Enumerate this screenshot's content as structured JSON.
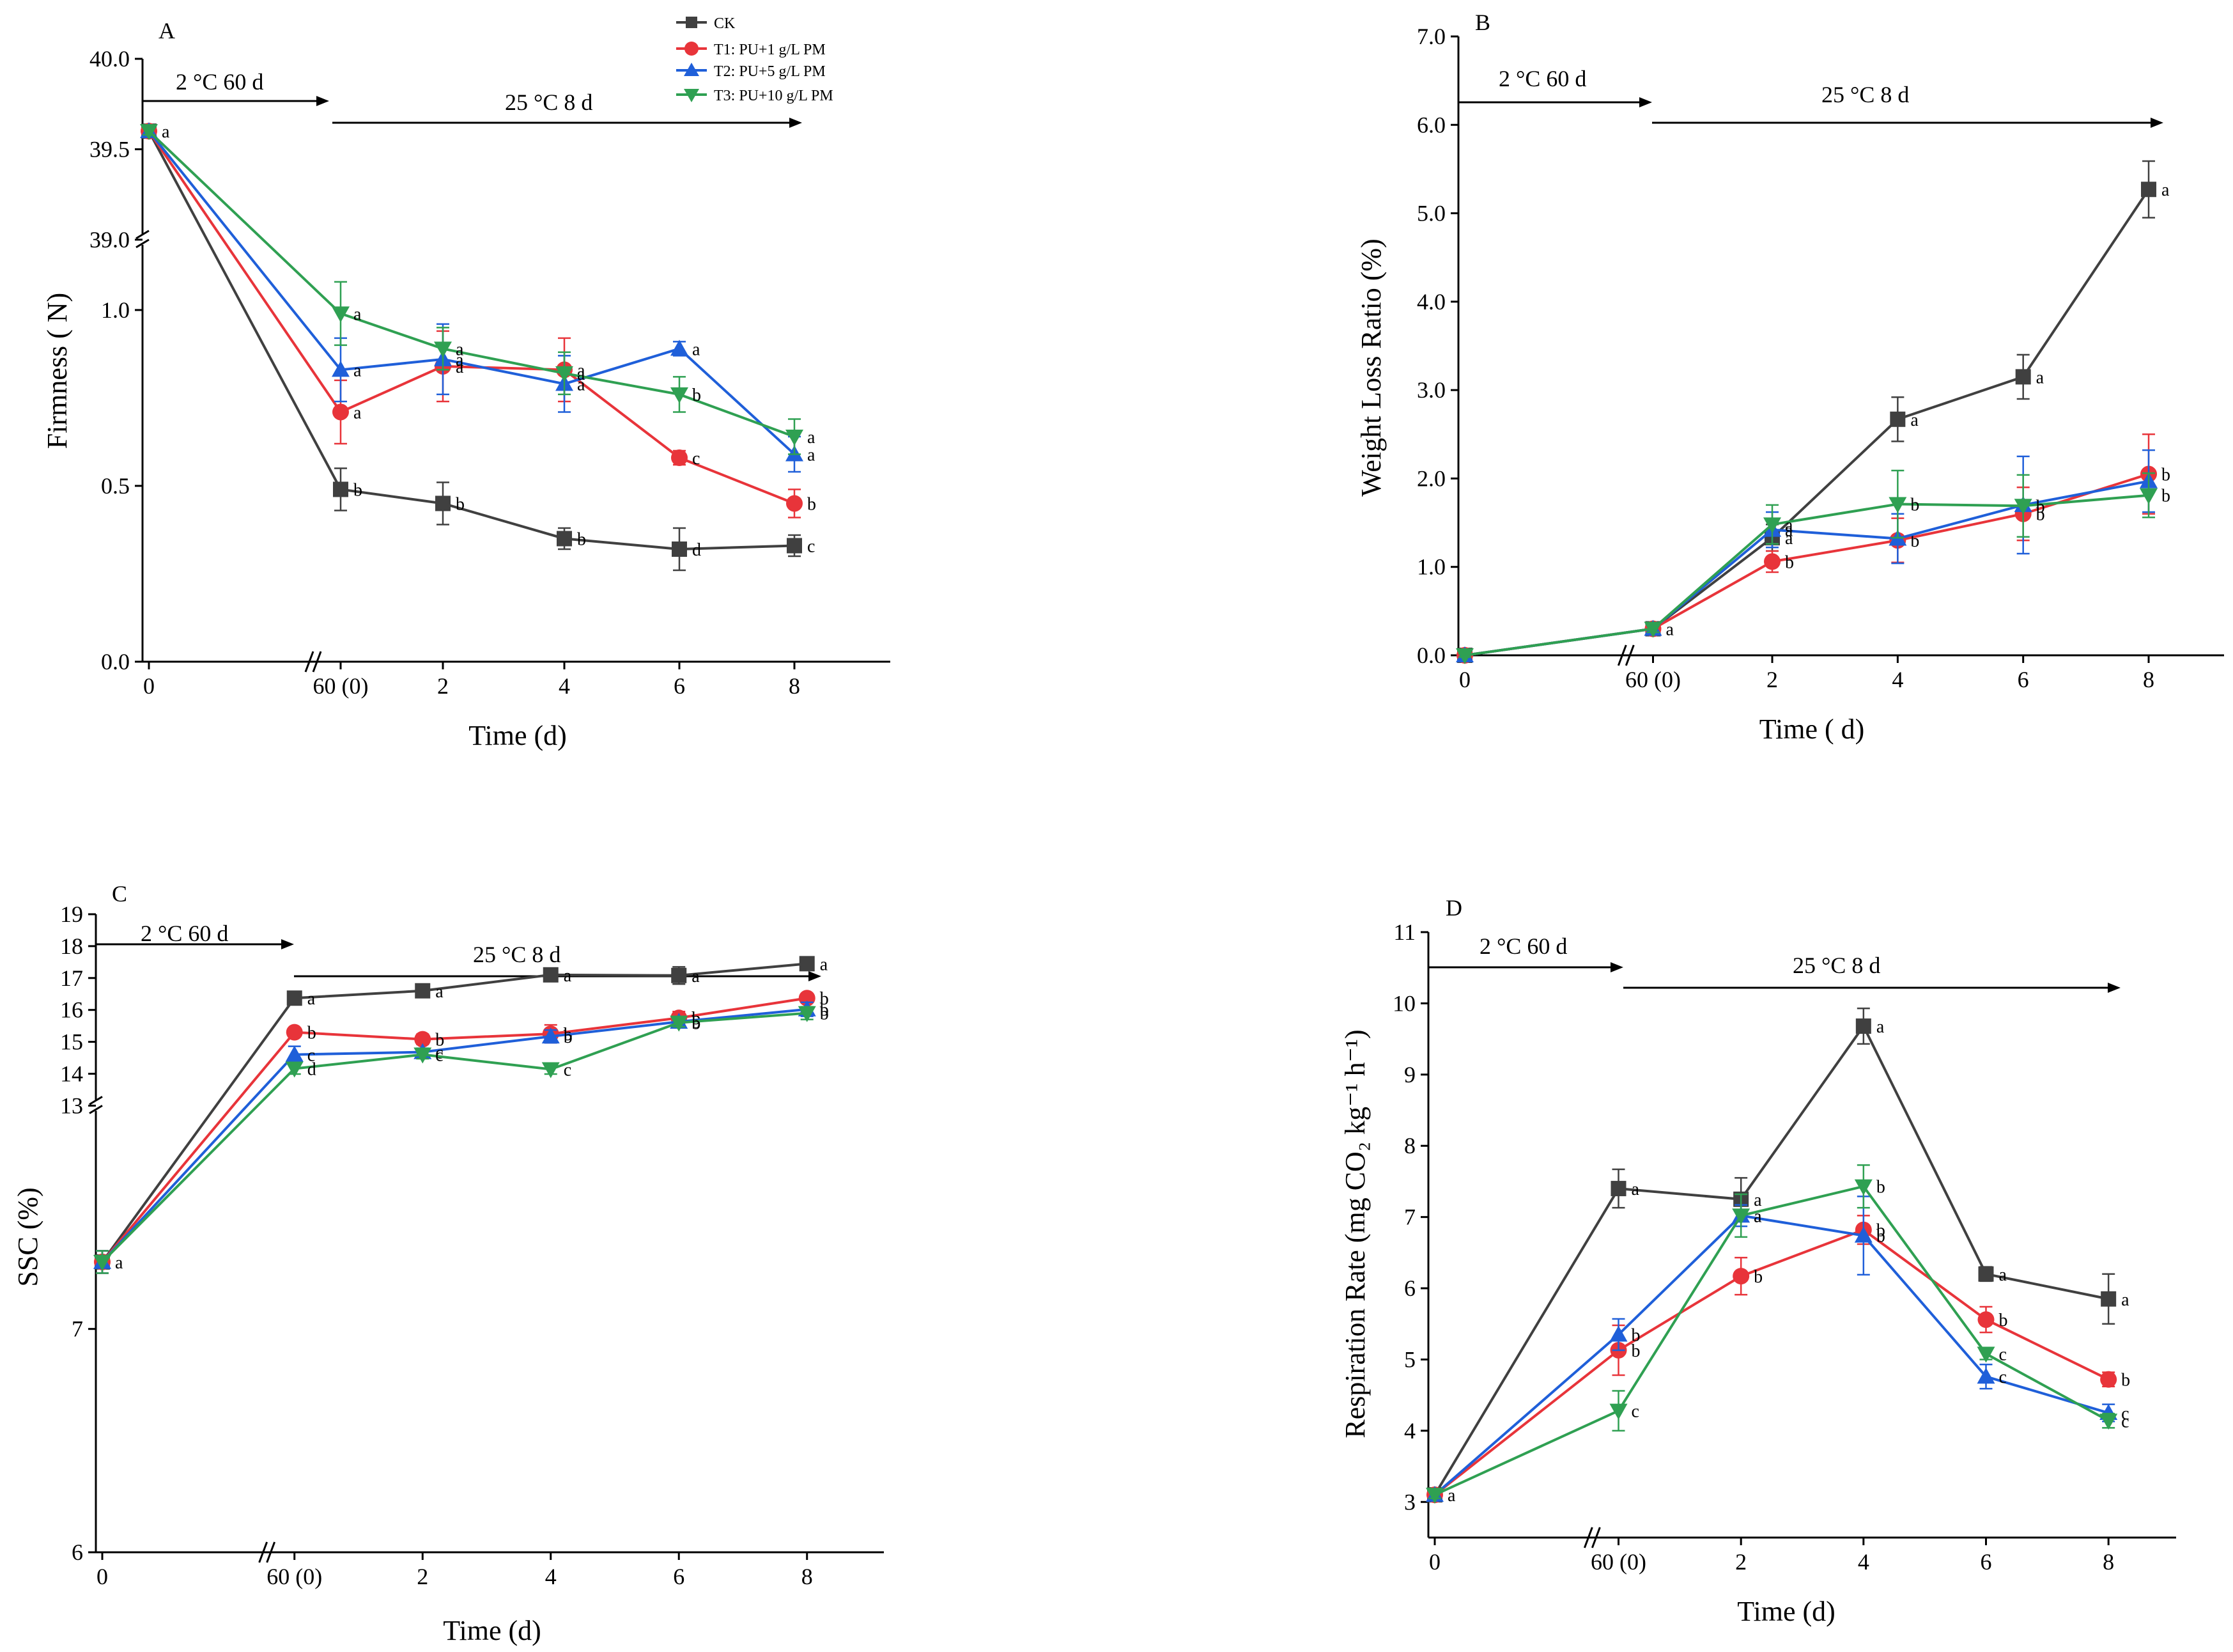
{
  "colors": {
    "CK": "#404040",
    "T1": "#e8343a",
    "T2": "#1f5fd9",
    "T3": "#2fa052"
  },
  "legend": [
    {
      "key": "CK",
      "label": "CK",
      "marker": "square"
    },
    {
      "key": "T1",
      "label": "T1: PU+1 g/L PM",
      "marker": "circle"
    },
    {
      "key": "T2",
      "label": "T2: PU+5 g/L PM",
      "marker": "triangle-up"
    },
    {
      "key": "T3",
      "label": "T3: PU+10 g/L PM",
      "marker": "triangle-down"
    }
  ],
  "chart_data": [
    {
      "id": "A",
      "panel": "A",
      "type": "line",
      "xlabel": "Time (d)",
      "ylabel": "Firmness ( N)",
      "categories": [
        "0",
        "60 (0)",
        "2",
        "4",
        "6",
        "8"
      ],
      "x_positions": [
        0,
        3,
        4.6,
        6.5,
        8.3,
        10.1
      ],
      "x_max": 11.5,
      "cold_label": "2 °C 60 d",
      "warm_label": "25 °C 8 d",
      "axis_break": {
        "lower": [
          0,
          1.2
        ],
        "upper": [
          39.0,
          40.0
        ],
        "split": 0.3
      },
      "ticks": [
        "0.0",
        "0.5",
        "1.0",
        "39.0",
        "39.5",
        "40.0"
      ],
      "tick_values": [
        0.0,
        0.5,
        1.0,
        39.0,
        39.5,
        40.0
      ],
      "series": [
        {
          "key": "CK",
          "name": "CK",
          "values": [
            39.6,
            0.49,
            0.45,
            0.35,
            0.32,
            0.33
          ],
          "errors": [
            0.02,
            0.06,
            0.06,
            0.03,
            0.06,
            0.03
          ],
          "labels": [
            "a",
            "b",
            "b",
            "b",
            "d",
            "c"
          ]
        },
        {
          "key": "T1",
          "name": "T1: PU+1 g/L PM",
          "values": [
            39.6,
            0.71,
            0.84,
            0.83,
            0.58,
            0.45
          ],
          "errors": [
            0.02,
            0.09,
            0.1,
            0.09,
            0.02,
            0.04
          ],
          "labels": [
            "",
            "a",
            "a",
            "a",
            "c",
            "b"
          ]
        },
        {
          "key": "T2",
          "name": "T2: PU+5 g/L PM",
          "values": [
            39.6,
            0.83,
            0.86,
            0.79,
            0.89,
            0.59
          ],
          "errors": [
            0.02,
            0.09,
            0.1,
            0.08,
            0.02,
            0.05
          ],
          "labels": [
            "",
            "a",
            "a",
            "a",
            "a",
            "a"
          ]
        },
        {
          "key": "T3",
          "name": "T3: PU+10 g/L PM",
          "values": [
            39.6,
            0.99,
            0.89,
            0.82,
            0.76,
            0.64
          ],
          "errors": [
            0.02,
            0.09,
            0.06,
            0.06,
            0.05,
            0.05
          ],
          "labels": [
            "",
            "a",
            "a",
            "a",
            "b",
            "a"
          ]
        }
      ]
    },
    {
      "id": "B",
      "panel": "B",
      "type": "line",
      "xlabel": "Time ( d)",
      "ylabel": "Weight Loss Ratio (%)",
      "categories": [
        "0",
        "60 (0)",
        "2",
        "4",
        "6",
        "8"
      ],
      "x_positions": [
        0,
        3,
        4.9,
        6.9,
        8.9,
        10.9
      ],
      "x_max": 12,
      "cold_label": "2 °C 60 d",
      "warm_label": "25 °C 8 d",
      "ylim": [
        0,
        7
      ],
      "ticks": [
        "0.0",
        "1.0",
        "2.0",
        "3.0",
        "4.0",
        "5.0",
        "6.0",
        "7.0"
      ],
      "tick_values": [
        0,
        1,
        2,
        3,
        4,
        5,
        6,
        7
      ],
      "series": [
        {
          "key": "CK",
          "name": "CK",
          "values": [
            0.0,
            0.3,
            1.33,
            2.67,
            3.15,
            5.27
          ],
          "errors": [
            0.02,
            0.05,
            0.15,
            0.25,
            0.25,
            0.32
          ],
          "labels": [
            "",
            "a",
            "a",
            "a",
            "a",
            "a"
          ]
        },
        {
          "key": "T1",
          "name": "T1: PU+1 g/L PM",
          "values": [
            0.0,
            0.3,
            1.06,
            1.3,
            1.6,
            2.05
          ],
          "errors": [
            0.02,
            0.04,
            0.12,
            0.25,
            0.3,
            0.45
          ],
          "labels": [
            "",
            "",
            "b",
            "b",
            "b",
            "b"
          ]
        },
        {
          "key": "T2",
          "name": "T2: PU+5 g/L PM",
          "values": [
            0.0,
            0.3,
            1.42,
            1.32,
            1.7,
            1.97
          ],
          "errors": [
            0.02,
            0.04,
            0.2,
            0.28,
            0.55,
            0.35
          ],
          "labels": [
            "",
            "",
            "a",
            "",
            "",
            ""
          ]
        },
        {
          "key": "T3",
          "name": "T3: PU+10 g/L PM",
          "values": [
            0.0,
            0.3,
            1.48,
            1.71,
            1.69,
            1.81
          ],
          "errors": [
            0.02,
            0.04,
            0.22,
            0.38,
            0.35,
            0.25
          ],
          "labels": [
            "",
            "",
            "a",
            "b",
            "b",
            "b"
          ]
        }
      ]
    },
    {
      "id": "C",
      "panel": "C",
      "type": "line",
      "xlabel": "Time (d)",
      "ylabel": "SSC (%)",
      "categories": [
        "0",
        "60 (0)",
        "2",
        "4",
        "6",
        "8"
      ],
      "x_positions": [
        0,
        3,
        5,
        7,
        9,
        11
      ],
      "x_max": 12.1,
      "cold_label": "2 °C 60 d",
      "warm_label": "25 °C 8 d",
      "axis_break": {
        "lower": [
          6,
          8
        ],
        "upper": [
          13,
          19
        ],
        "split": 0.3
      },
      "ticks": [
        "6",
        "7",
        "13",
        "14",
        "15",
        "16",
        "17",
        "18",
        "19"
      ],
      "tick_values": [
        6,
        7,
        13,
        14,
        15,
        16,
        17,
        18,
        19
      ],
      "series": [
        {
          "key": "CK",
          "name": "CK",
          "values": [
            7.3,
            16.37,
            16.6,
            17.1,
            17.08,
            17.45
          ],
          "errors": [
            0.05,
            0.13,
            0.12,
            0.14,
            0.27,
            0.16
          ],
          "labels": [
            "a",
            "a",
            "a",
            "a",
            "a",
            "a"
          ]
        },
        {
          "key": "T1",
          "name": "T1: PU+1 g/L PM",
          "values": [
            7.3,
            15.3,
            15.08,
            15.25,
            15.75,
            16.37
          ],
          "errors": [
            0.05,
            0.12,
            0.16,
            0.28,
            0.2,
            0.13
          ],
          "labels": [
            "",
            "b",
            "b",
            "b",
            "b",
            "b"
          ]
        },
        {
          "key": "T2",
          "name": "T2: PU+5 g/L PM",
          "values": [
            7.3,
            14.6,
            14.68,
            15.17,
            15.63,
            16.02
          ],
          "errors": [
            0.05,
            0.26,
            0.12,
            0.2,
            0.13,
            0.22
          ],
          "labels": [
            "",
            "c",
            "c",
            "b",
            "b",
            "b"
          ]
        },
        {
          "key": "T3",
          "name": "T3: PU+10 g/L PM",
          "values": [
            7.3,
            14.16,
            14.6,
            14.14,
            15.6,
            15.9
          ],
          "errors": [
            0.05,
            0.17,
            0.13,
            0.15,
            0.13,
            0.2
          ],
          "labels": [
            "",
            "d",
            "c",
            "c",
            "b",
            "b"
          ]
        }
      ]
    },
    {
      "id": "D",
      "panel": "D",
      "type": "line",
      "xlabel": "Time (d)",
      "ylabel": "Respiration Rate (mg CO₂ kg⁻¹ h⁻¹)",
      "categories": [
        "0",
        "60 (0)",
        "2",
        "4",
        "6",
        "8"
      ],
      "x_positions": [
        0,
        3,
        5,
        7,
        9,
        11
      ],
      "x_max": 12,
      "cold_label": "2 °C 60 d",
      "warm_label": "25 °C 8 d",
      "ylim": [
        2.5,
        11
      ],
      "ticks": [
        "3",
        "4",
        "5",
        "6",
        "7",
        "8",
        "9",
        "10",
        "11"
      ],
      "tick_values": [
        3,
        4,
        5,
        6,
        7,
        8,
        9,
        10,
        11
      ],
      "series": [
        {
          "key": "CK",
          "name": "CK",
          "values": [
            3.1,
            7.4,
            7.25,
            9.68,
            6.2,
            5.85
          ],
          "errors": [
            0.05,
            0.27,
            0.3,
            0.25,
            0.1,
            0.35
          ],
          "labels": [
            "a",
            "a",
            "a",
            "a",
            "a",
            "a"
          ]
        },
        {
          "key": "T1",
          "name": "T1: PU+1 g/L PM",
          "values": [
            3.1,
            5.13,
            6.17,
            6.82,
            5.56,
            4.72
          ],
          "errors": [
            0.05,
            0.35,
            0.26,
            0.2,
            0.18,
            0.1
          ],
          "labels": [
            "",
            "b",
            "b",
            "b",
            "b",
            "b"
          ]
        },
        {
          "key": "T2",
          "name": "T2: PU+5 g/L PM",
          "values": [
            3.1,
            5.35,
            7.02,
            6.74,
            4.76,
            4.25
          ],
          "errors": [
            0.05,
            0.22,
            0.15,
            0.55,
            0.17,
            0.12
          ],
          "labels": [
            "",
            "b",
            "a",
            "b",
            "c",
            "c"
          ]
        },
        {
          "key": "T3",
          "name": "T3: PU+10 g/L PM",
          "values": [
            3.1,
            4.28,
            7.02,
            7.43,
            5.08,
            4.14
          ],
          "errors": [
            0.05,
            0.28,
            0.3,
            0.3,
            0.08,
            0.1
          ],
          "labels": [
            "",
            "c",
            "a",
            "b",
            "c",
            "c"
          ]
        }
      ]
    }
  ]
}
